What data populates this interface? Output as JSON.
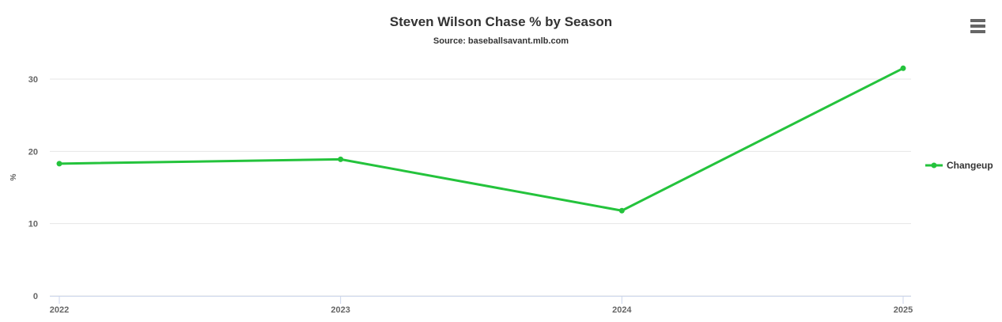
{
  "chart": {
    "title": "Steven Wilson Chase % by Season",
    "subtitle": "Source: baseballsavant.mlb.com",
    "menu_icon": "hamburger-menu"
  },
  "chart_data": {
    "type": "line",
    "title": "Steven Wilson Chase % by Season",
    "subtitle": "Source: baseballsavant.mlb.com",
    "categories": [
      "2022",
      "2023",
      "2024",
      "2025"
    ],
    "series": [
      {
        "name": "Changeup",
        "color": "#24c33c",
        "values": [
          18.3,
          18.9,
          11.8,
          31.5
        ]
      }
    ],
    "xlabel": "",
    "ylabel": "%",
    "yticks": [
      0,
      10,
      20,
      30
    ],
    "ylim": [
      0,
      32.5
    ],
    "grid": true,
    "legend_position": "right"
  },
  "colors": {
    "series_line": "#24c33c",
    "gridline": "#e6e6e6",
    "axis_line": "#ccd6eb",
    "tick_mark": "#ccd6eb",
    "title_text": "#333333",
    "axis_label_text": "#666666",
    "legend_text": "#333333",
    "menu_icon": "#666666",
    "background": "#ffffff"
  }
}
